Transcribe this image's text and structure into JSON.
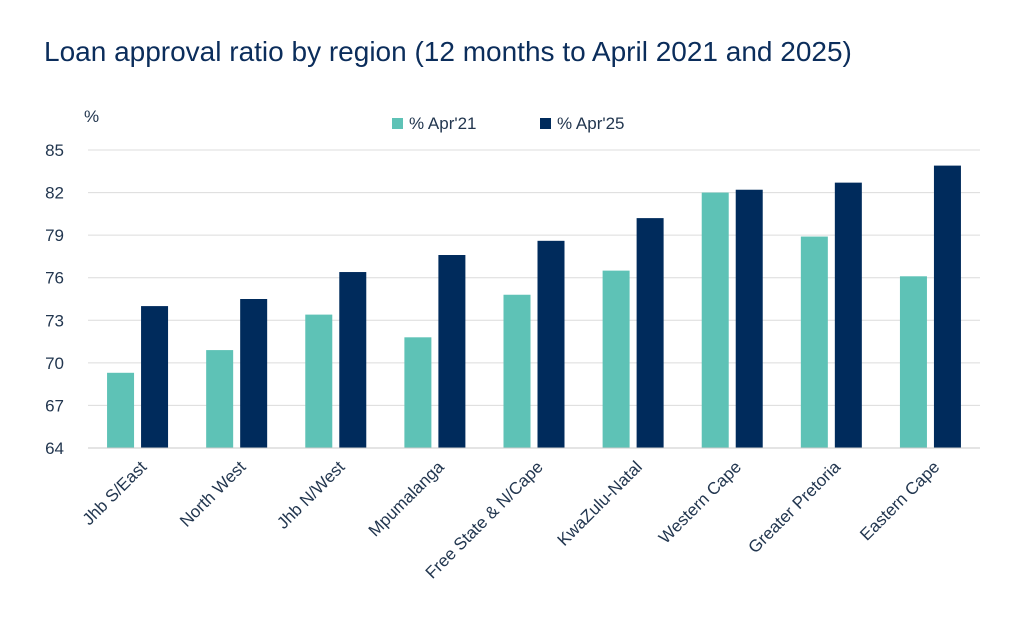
{
  "chart_data": {
    "type": "bar",
    "title": "Loan approval ratio by region (12 months to April 2021 and 2025)",
    "ylabel": "%",
    "xlabel": "",
    "ylim": [
      64,
      85
    ],
    "yticks": [
      64,
      67,
      70,
      73,
      76,
      79,
      82,
      85
    ],
    "grid": true,
    "legend_position": "top-center",
    "categories": [
      "Jhb S/East",
      "North West",
      "Jhb N/West",
      "Mpumalanga",
      "Free State & N/Cape",
      "KwaZulu-Natal",
      "Western Cape",
      "Greater Pretoria",
      "Eastern Cape"
    ],
    "series": [
      {
        "name": "% Apr'21",
        "color": "#5ec2b6",
        "values": [
          69.3,
          70.9,
          73.4,
          71.8,
          74.8,
          76.5,
          82.0,
          78.9,
          76.1
        ]
      },
      {
        "name": "% Apr'25",
        "color": "#002b5c",
        "values": [
          74.0,
          74.5,
          76.4,
          77.6,
          78.6,
          80.2,
          82.2,
          82.7,
          83.9
        ]
      }
    ]
  }
}
